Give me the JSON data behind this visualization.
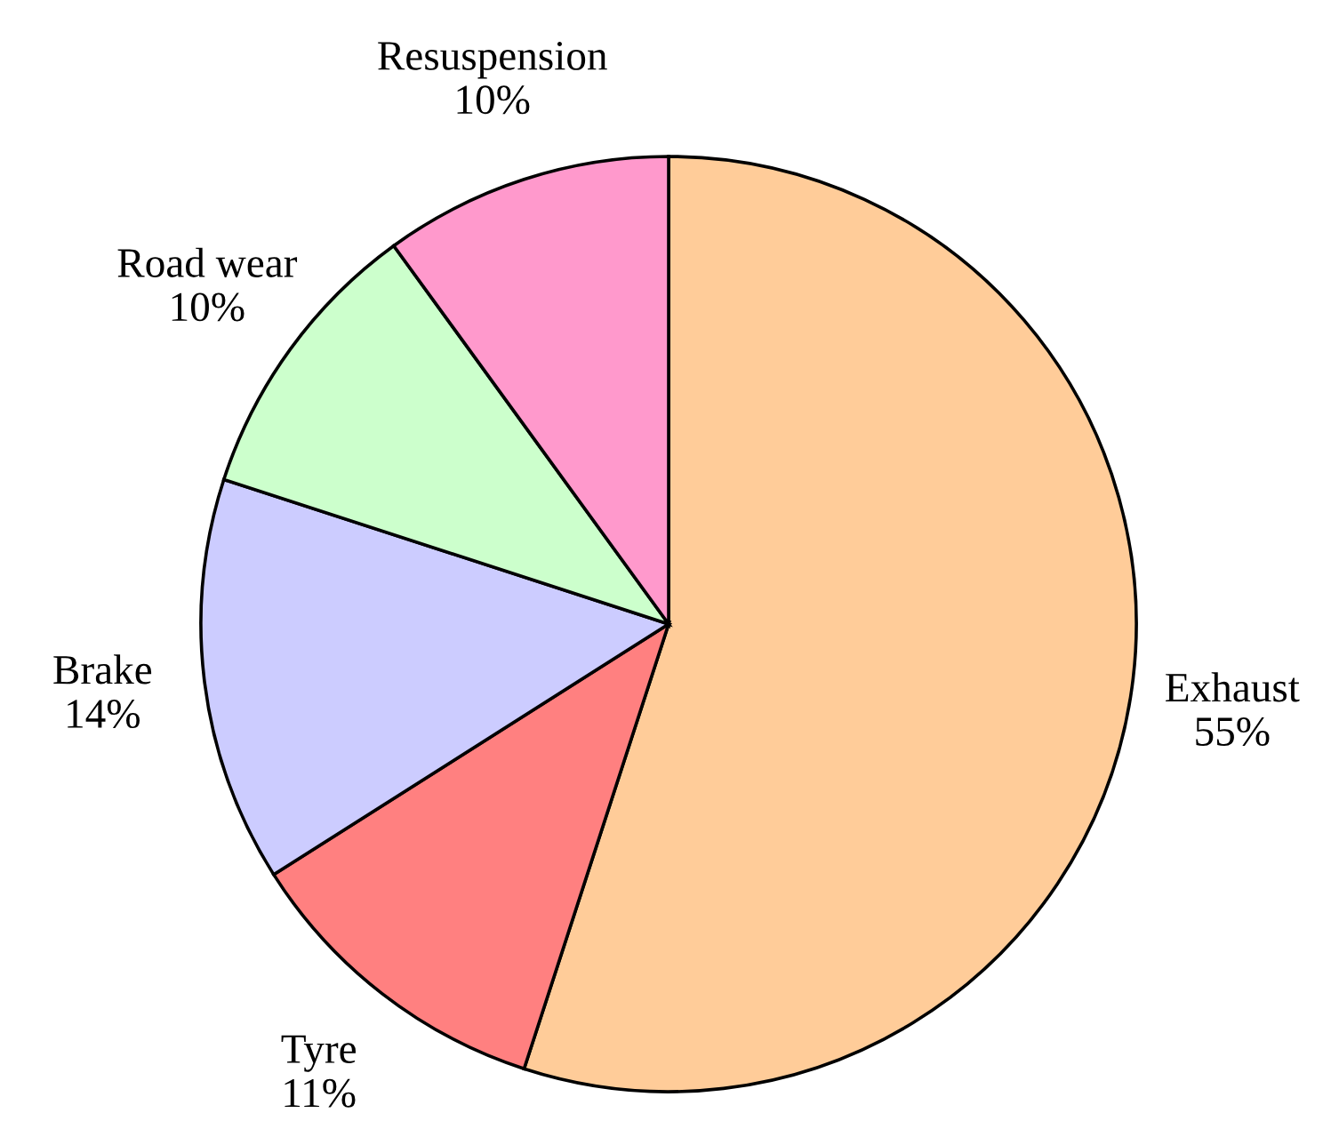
{
  "chart_data": {
    "type": "pie",
    "categories": [
      "Exhaust",
      "Tyre",
      "Brake",
      "Road wear",
      "Resuspension"
    ],
    "values": [
      55,
      11,
      14,
      10,
      10
    ],
    "value_labels": [
      "55%",
      "11%",
      "14%",
      "10%",
      "10%"
    ],
    "colors": [
      "#ffcc99",
      "#ff8080",
      "#ccccff",
      "#ccffcc",
      "#ff99cc"
    ]
  }
}
